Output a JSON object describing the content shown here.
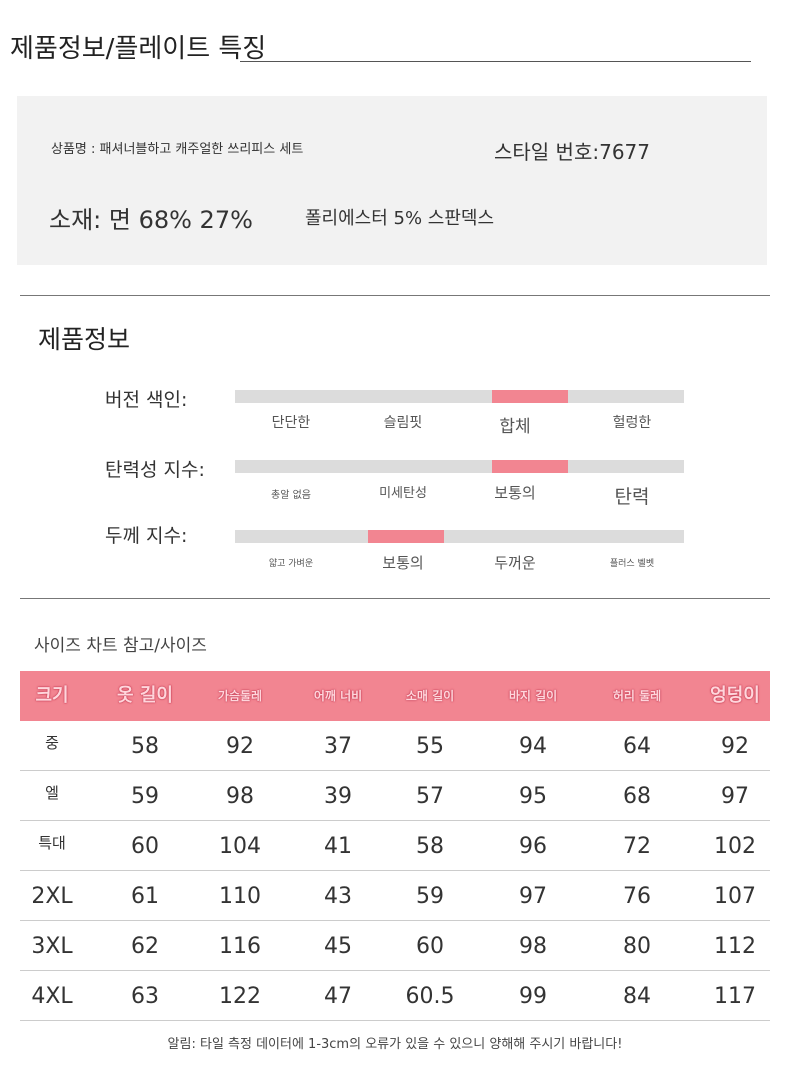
{
  "title": "제품정보/플레이트 특징",
  "info": {
    "product_name": "상품명 : 패셔너블하고 캐주얼한 쓰리피스 세트",
    "style_no": "스타일 번호:7677",
    "material_main": "소재: 면 68% 27%",
    "material_rest": "폴리에스터 5% 스판덱스"
  },
  "product_info": {
    "heading": "제품정보",
    "scales": [
      {
        "label": "버전 색인:",
        "levels": [
          "단단한",
          "슬림핏",
          "합체",
          "헐렁한"
        ],
        "selected_index": 2
      },
      {
        "label": "탄력성 지수:",
        "levels": [
          "총알 없음",
          "미세탄성",
          "보통의",
          "탄력"
        ],
        "selected_index": 2
      },
      {
        "label": "두께 지수:",
        "levels": [
          "얇고 가벼운",
          "보통의",
          "두꺼운",
          "플러스 벨벳"
        ],
        "selected_index": 1
      }
    ]
  },
  "size_chart": {
    "heading": "사이즈 차트 참고/사이즈",
    "columns": [
      "크기",
      "옷 길이",
      "가슴둘레",
      "어깨 너비",
      "소매 길이",
      "바지 길이",
      "허리 둘레",
      "엉덩이"
    ],
    "rows": [
      [
        "중",
        "58",
        "92",
        "37",
        "55",
        "94",
        "64",
        "92"
      ],
      [
        "엘",
        "59",
        "98",
        "39",
        "57",
        "95",
        "68",
        "97"
      ],
      [
        "특대",
        "60",
        "104",
        "41",
        "58",
        "96",
        "72",
        "102"
      ],
      [
        "2XL",
        "61",
        "110",
        "43",
        "59",
        "97",
        "76",
        "107"
      ],
      [
        "3XL",
        "62",
        "116",
        "45",
        "60",
        "98",
        "80",
        "112"
      ],
      [
        "4XL",
        "63",
        "122",
        "47",
        "60.5",
        "99",
        "84",
        "117"
      ]
    ],
    "note": "알림: 타일 측정 데이터에 1-3cm의 오류가 있을 수 있으니 양해해 주시기 바랍니다!"
  },
  "colors": {
    "accent": "#f28591",
    "bar_bg": "#dcdcdc",
    "box_bg": "#f2f2f2"
  }
}
